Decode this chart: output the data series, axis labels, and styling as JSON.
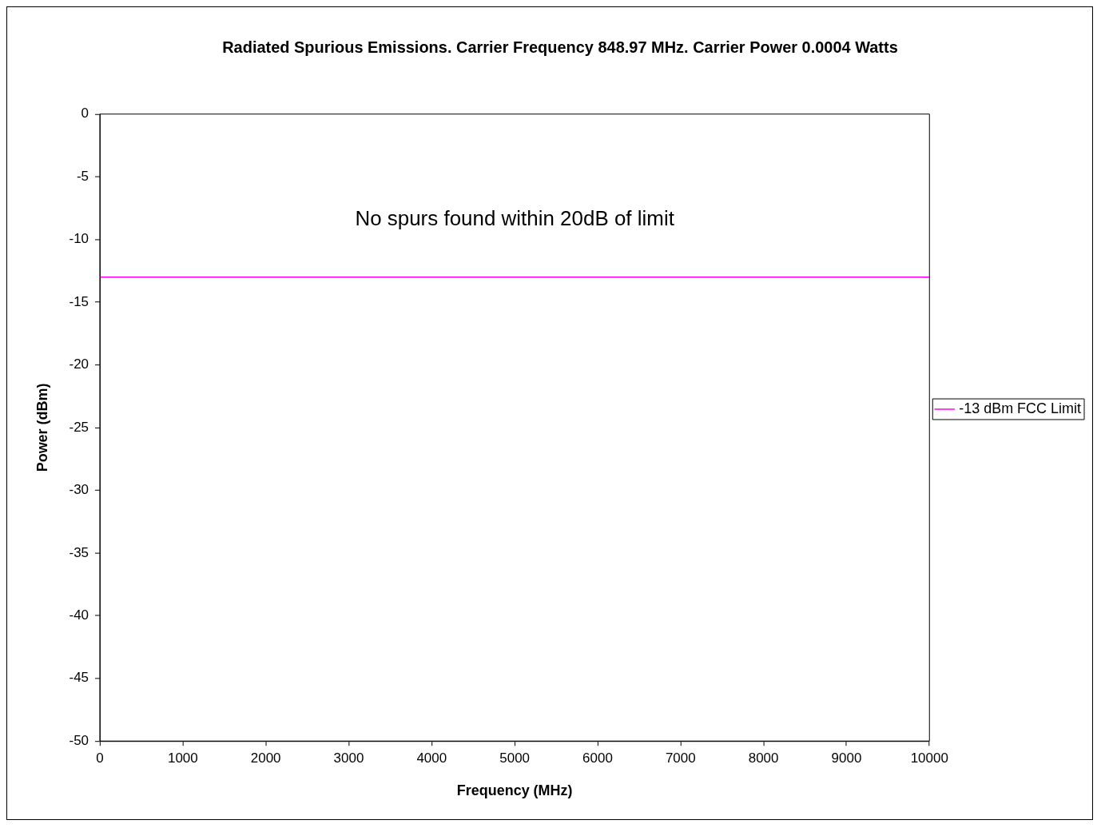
{
  "chart_data": {
    "type": "line",
    "title": "Radiated Spurious Emissions. Carrier Frequency 848.97 MHz. Carrier Power 0.0004 Watts",
    "xlabel": "Frequency (MHz)",
    "ylabel": "Power (dBm)",
    "series": [
      {
        "name": "-13 dBm FCC Limit",
        "color": "#ff00ff",
        "x": [
          0,
          10000
        ],
        "values": [
          -13,
          -13
        ]
      }
    ],
    "xlim": [
      0,
      10000
    ],
    "xticks": [
      0,
      1000,
      2000,
      3000,
      4000,
      5000,
      6000,
      7000,
      8000,
      9000,
      10000
    ],
    "ylim": [
      -50,
      0
    ],
    "yticks": [
      0,
      -5,
      -10,
      -15,
      -20,
      -25,
      -30,
      -35,
      -40,
      -45,
      -50
    ],
    "grid": false,
    "legend": "right",
    "marker": "none",
    "line_style": "solid",
    "annotations": [
      "No spurs found within 20dB of limit"
    ]
  }
}
